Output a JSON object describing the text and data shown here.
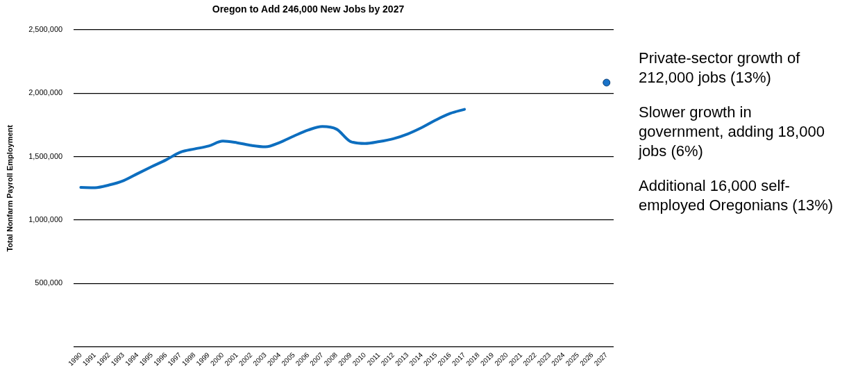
{
  "chart_data": {
    "type": "line",
    "title": "Oregon to Add 246,000 New Jobs by 2027",
    "ylabel": "Total Nonfarm Payroll Employment",
    "categories": [
      "1990",
      "1991",
      "1992",
      "1993",
      "1994",
      "1995",
      "1996",
      "1997",
      "1998",
      "1999",
      "2000",
      "2001",
      "2002",
      "2003",
      "2004",
      "2005",
      "2006",
      "2007",
      "2008",
      "2009",
      "2010",
      "2011",
      "2012",
      "2013",
      "2014",
      "2015",
      "2016",
      "2017",
      "2018",
      "2019",
      "2020",
      "2021",
      "2022",
      "2023",
      "2024",
      "2025",
      "2026",
      "2027"
    ],
    "series": [
      {
        "color": "#0d6ebf",
        "values": [
          1257000,
          1255000,
          1276000,
          1310000,
          1366000,
          1421000,
          1474000,
          1534000,
          1560000,
          1583000,
          1622000,
          1609000,
          1588000,
          1577000,
          1611000,
          1662000,
          1709000,
          1737000,
          1716000,
          1618000,
          1603000,
          1618000,
          1641000,
          1678000,
          1729000,
          1789000,
          1840000,
          1872000,
          null,
          null,
          null,
          null,
          null,
          null,
          null,
          null,
          null,
          null
        ]
      },
      {
        "type": "scatter",
        "color": "#1a73c9",
        "values": [
          null,
          null,
          null,
          null,
          null,
          null,
          null,
          null,
          null,
          null,
          null,
          null,
          null,
          null,
          null,
          null,
          null,
          null,
          null,
          null,
          null,
          null,
          null,
          null,
          null,
          null,
          null,
          null,
          null,
          null,
          null,
          null,
          null,
          null,
          null,
          null,
          null,
          2083000
        ]
      }
    ],
    "ylim": [
      0,
      2500000
    ],
    "yticks": [
      {
        "value": 0,
        "label": null
      },
      {
        "value": 500000,
        "label": "500,000"
      },
      {
        "value": 1000000,
        "label": "1,000,000"
      },
      {
        "value": 1500000,
        "label": "1,500,000"
      },
      {
        "value": 2000000,
        "label": "2,000,000"
      },
      {
        "value": 2500000,
        "label": "2,500,000"
      }
    ],
    "grid": "y",
    "legend": false,
    "annotations": [
      "Private-sector growth of 212,000 jobs (13%)",
      "Slower growth in government, adding 18,000 jobs (6%)",
      "Additional 16,000 self-employed Oregonians (13%)"
    ]
  }
}
